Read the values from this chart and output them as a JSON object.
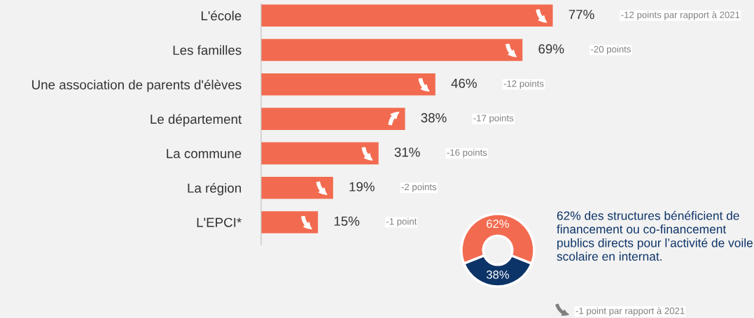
{
  "chart_data": [
    {
      "type": "bar",
      "orientation": "horizontal",
      "categories": [
        "L'école",
        "Les familles",
        "Une association de parents d'élèves",
        "Le département",
        "La commune",
        "La région",
        "L'EPCI*"
      ],
      "values": [
        77,
        69,
        46,
        38,
        31,
        19,
        15
      ],
      "color": "#f26b50",
      "data_labels": true,
      "value_labels": [
        "77%",
        "69%",
        "46%",
        "38%",
        "31%",
        "19%",
        "15%"
      ],
      "grid": false,
      "annotations": [
        "-12 points par rapport à 2021",
        "-20 points",
        "-12 points",
        "-17 points",
        "-16 points",
        "-2 points",
        "-1 point"
      ]
    },
    {
      "type": "donut",
      "categories": [
        null,
        null
      ],
      "values": [
        62,
        38
      ],
      "colors": [
        "#f26b50",
        "#0d3468"
      ],
      "value_labels": [
        "62%",
        "38%"
      ],
      "annotations": [
        "62% des structures bénéficient de financement ou co-financement publics directs pour l’activité de voile scolaire en internat.",
        "-1 point par rapport à 2021"
      ]
    }
  ]
}
